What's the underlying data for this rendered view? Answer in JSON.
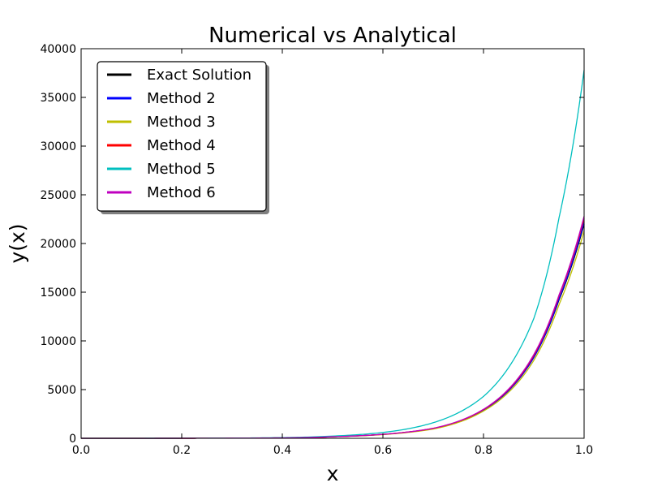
{
  "chart_data": {
    "type": "line",
    "title": "Numerical vs Analytical",
    "xlabel": "x",
    "ylabel": "y(x)",
    "xlim": [
      0.0,
      1.0
    ],
    "ylim": [
      0,
      40000
    ],
    "x_ticks": [
      "0.0",
      "0.2",
      "0.4",
      "0.6",
      "0.8",
      "1.0"
    ],
    "y_ticks": [
      "0",
      "5000",
      "10000",
      "15000",
      "20000",
      "25000",
      "30000",
      "35000",
      "40000"
    ],
    "grid": false,
    "legend_position": "top-left",
    "x": [
      0.0,
      0.4,
      0.5,
      0.6,
      0.7,
      0.8,
      0.9,
      0.95,
      1.0
    ],
    "series": [
      {
        "name": "Exact Solution",
        "color": "#000000",
        "values": [
          0,
          40,
          160,
          400,
          1000,
          2900,
          8300,
          14200,
          22000
        ]
      },
      {
        "name": "Method 2",
        "color": "#0000ff",
        "values": [
          0,
          40,
          160,
          400,
          1000,
          2900,
          8300,
          14300,
          22200
        ]
      },
      {
        "name": "Method 3",
        "color": "#bfbf00",
        "values": [
          0,
          40,
          150,
          380,
          950,
          2800,
          8000,
          13700,
          21300
        ]
      },
      {
        "name": "Method 4",
        "color": "#ff0000",
        "values": [
          0,
          40,
          160,
          410,
          1020,
          2950,
          8500,
          14600,
          22600
        ]
      },
      {
        "name": "Method 5",
        "color": "#00bfbf",
        "values": [
          0,
          70,
          230,
          600,
          1600,
          4300,
          12300,
          22600,
          37800
        ]
      },
      {
        "name": "Method 6",
        "color": "#bf00bf",
        "values": [
          0,
          40,
          160,
          410,
          1030,
          2980,
          8600,
          14700,
          22800
        ]
      }
    ]
  }
}
